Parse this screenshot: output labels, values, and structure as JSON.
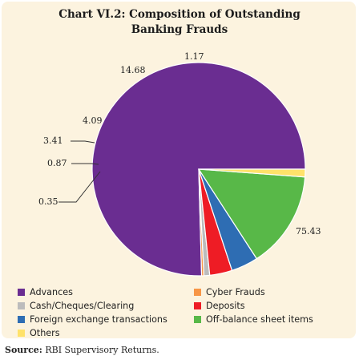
{
  "chart_data": {
    "type": "pie",
    "title_line1": "Chart VI.2: Composition of Outstanding",
    "title_line2": "Banking Frauds",
    "start_angle_deg": 0,
    "direction": "counterclockwise",
    "slices": [
      {
        "label": "Advances",
        "value": 75.43,
        "value_text": "75.43",
        "color": "#6a2d91"
      },
      {
        "label": "Cyber Frauds",
        "value": 0.35,
        "value_text": "0.35",
        "color": "#f79646"
      },
      {
        "label": "Cash/Cheques/Clearing",
        "value": 0.87,
        "value_text": "0.87",
        "color": "#bcbcbc"
      },
      {
        "label": "Deposits",
        "value": 3.41,
        "value_text": "3.41",
        "color": "#ee1c25"
      },
      {
        "label": "Foreign exchange transactions",
        "value": 4.09,
        "value_text": "4.09",
        "color": "#2e6db3"
      },
      {
        "label": "Off-balance sheet items",
        "value": 14.68,
        "value_text": "14.68",
        "color": "#58b848"
      },
      {
        "label": "Others",
        "value": 1.17,
        "value_text": "1.17",
        "color": "#ffe26a"
      }
    ],
    "legend_order": [
      0,
      1,
      2,
      3,
      4,
      5,
      6
    ]
  },
  "source": {
    "label": "Source:",
    "text": " RBI Supervisory Returns."
  }
}
